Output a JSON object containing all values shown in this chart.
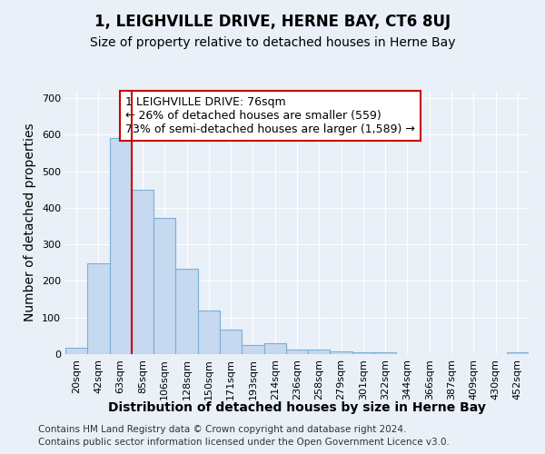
{
  "title": "1, LEIGHVILLE DRIVE, HERNE BAY, CT6 8UJ",
  "subtitle": "Size of property relative to detached houses in Herne Bay",
  "xlabel": "Distribution of detached houses by size in Herne Bay",
  "ylabel": "Number of detached properties",
  "categories": [
    "20sqm",
    "42sqm",
    "63sqm",
    "85sqm",
    "106sqm",
    "128sqm",
    "150sqm",
    "171sqm",
    "193sqm",
    "214sqm",
    "236sqm",
    "258sqm",
    "279sqm",
    "301sqm",
    "322sqm",
    "344sqm",
    "366sqm",
    "387sqm",
    "409sqm",
    "430sqm",
    "452sqm"
  ],
  "values": [
    17,
    248,
    590,
    450,
    373,
    234,
    120,
    67,
    24,
    30,
    13,
    12,
    8,
    5,
    5,
    0,
    0,
    0,
    0,
    0,
    5
  ],
  "bar_color": "#c6d9f0",
  "bar_edge_color": "#7bafd4",
  "marker_line_color": "#cc0000",
  "annotation_text": "1 LEIGHVILLE DRIVE: 76sqm\n← 26% of detached houses are smaller (559)\n73% of semi-detached houses are larger (1,589) →",
  "annotation_box_color": "#ffffff",
  "annotation_border_color": "#cc0000",
  "ylim": [
    0,
    720
  ],
  "yticks": [
    0,
    100,
    200,
    300,
    400,
    500,
    600,
    700
  ],
  "footer1": "Contains HM Land Registry data © Crown copyright and database right 2024.",
  "footer2": "Contains public sector information licensed under the Open Government Licence v3.0.",
  "bg_color": "#eaf0f8",
  "plot_bg_color": "#eaf0f8",
  "title_fontsize": 12,
  "subtitle_fontsize": 10,
  "label_fontsize": 10,
  "tick_fontsize": 8,
  "annot_fontsize": 9,
  "footer_fontsize": 7.5
}
